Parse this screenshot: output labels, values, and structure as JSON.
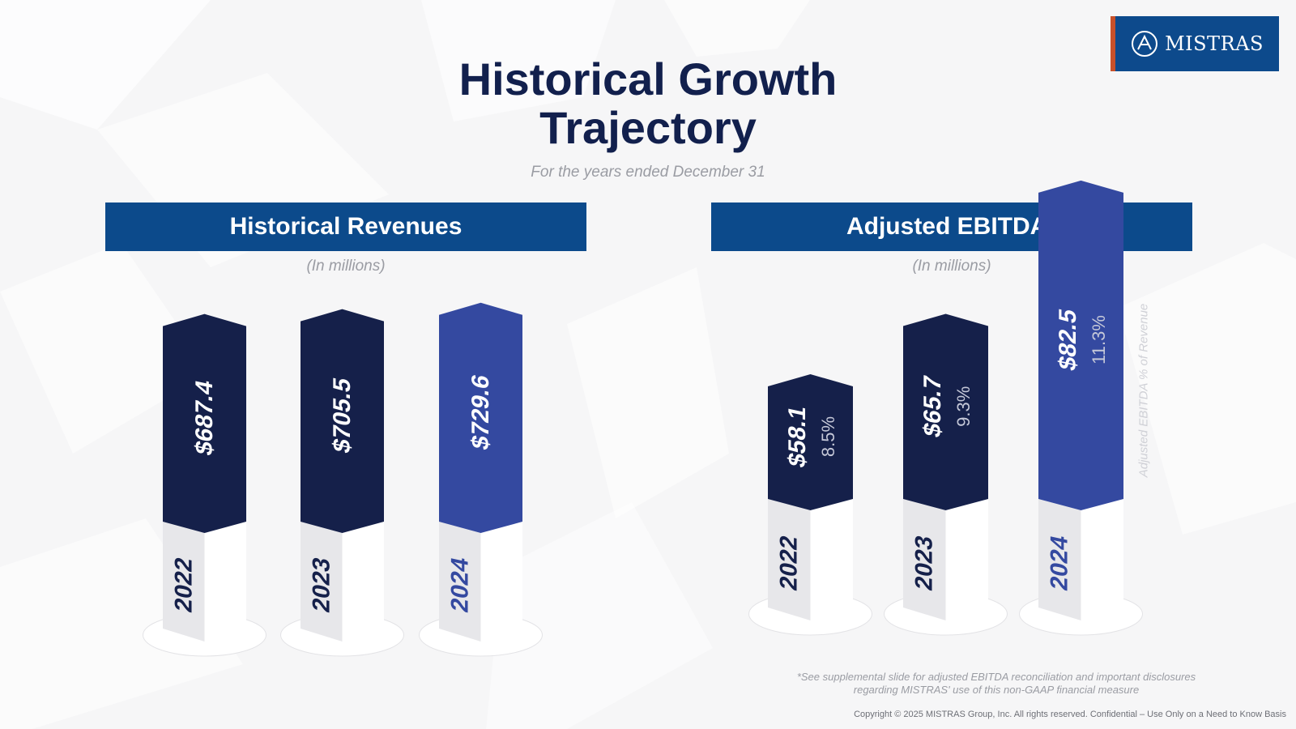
{
  "title_line1": "Historical Growth",
  "title_line2": "Trajectory",
  "subtitle": "For the years ended December 31",
  "logo_text": "MISTRAS",
  "footnote_line1": "*See supplemental slide for adjusted EBITDA reconciliation and important disclosures",
  "footnote_line2": "regarding MISTRAS' use of this non-GAAP financial measure",
  "copyright": "Copyright © 2025 MISTRAS Group, Inc. All rights reserved. Confidential – Use Only on a Need to Know Basis",
  "colors": {
    "dark_navy": "#15204a",
    "highlight": "#3449a0",
    "band": "#0c4a8b",
    "logo_accent": "#c8512a"
  },
  "chart_data": [
    {
      "type": "bar",
      "title": "Historical Revenues",
      "units": "(In millions)",
      "categories": [
        "2022",
        "2023",
        "2024"
      ],
      "values": [
        687.4,
        705.5,
        729.6
      ],
      "value_labels": [
        "$687.4",
        "$705.5",
        "$729.6"
      ],
      "highlight_category": "2024"
    },
    {
      "type": "bar",
      "title": "Adjusted EBITDA*",
      "units": "(In millions)",
      "categories": [
        "2022",
        "2023",
        "2024"
      ],
      "values": [
        58.1,
        65.7,
        82.5
      ],
      "value_labels": [
        "$58.1",
        "$65.7",
        "$82.5"
      ],
      "margin_labels": [
        "8.5%",
        "9.3%",
        "11.3%"
      ],
      "margin_axis_label": "Adjusted EBITDA % of Revenue",
      "highlight_category": "2024"
    }
  ]
}
